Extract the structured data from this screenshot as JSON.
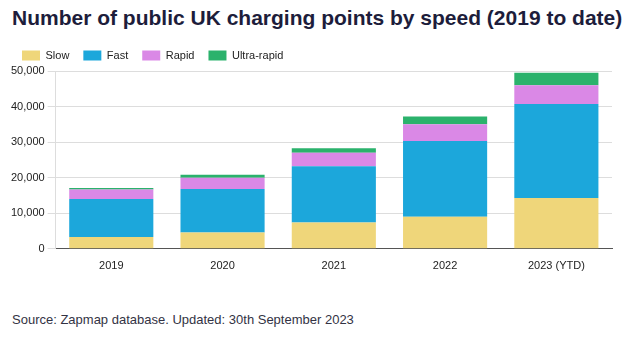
{
  "chart_data": {
    "type": "bar",
    "title": "Number of public UK charging points by speed (2019 to date)",
    "annotations": [
      "Source: Zapmap database. Updated: 30th September 2023"
    ],
    "categories": [
      "2019",
      "2020",
      "2021",
      "2022",
      "2023 (YTD)"
    ],
    "series": [
      {
        "name": "Slow",
        "color": "#efd67a",
        "values": [
          3300,
          4600,
          7400,
          9000,
          14300
        ]
      },
      {
        "name": "Fast",
        "color": "#1ca7db",
        "values": [
          10700,
          12200,
          15800,
          21300,
          26400
        ]
      },
      {
        "name": "Rapid",
        "color": "#da88e6",
        "values": [
          2700,
          3200,
          3800,
          4700,
          5300
        ]
      },
      {
        "name": "Ultra-rapid",
        "color": "#2bb26c",
        "values": [
          400,
          800,
          1300,
          2200,
          3500
        ]
      }
    ],
    "ylim": [
      0,
      50000
    ],
    "yticks": [
      0,
      {
        "value": 10000,
        "label": "10,000"
      },
      {
        "value": 20000,
        "label": "20,000"
      },
      {
        "value": 30000,
        "label": "30,000"
      },
      {
        "value": 40000,
        "label": "40,000"
      },
      {
        "value": 50000,
        "label": "50,000"
      }
    ],
    "stacked": true,
    "grid": true,
    "legend": "top-left"
  }
}
